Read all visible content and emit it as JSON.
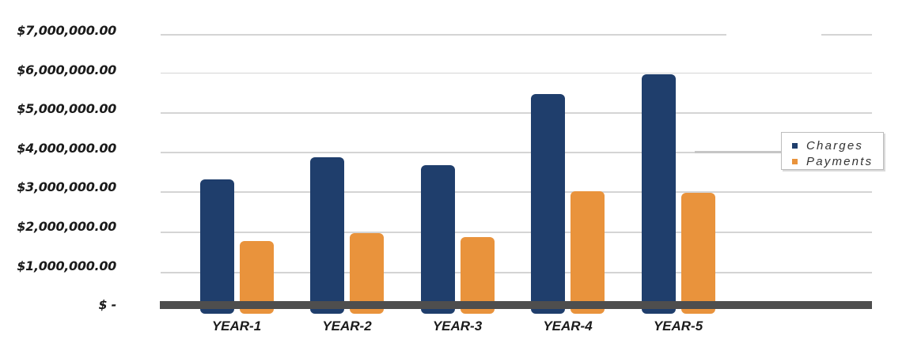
{
  "chart_data": {
    "type": "bar",
    "title": "",
    "categories": [
      "YEAR-1",
      "YEAR-2",
      "YEAR-3",
      "YEAR-4",
      "YEAR-5"
    ],
    "series": [
      {
        "name": "Charges",
        "color": "#1F3E6C",
        "values": [
          3350000,
          3900000,
          3700000,
          5500000,
          6000000
        ]
      },
      {
        "name": "Payments",
        "color": "#E9933C",
        "values": [
          1800000,
          2000000,
          1900000,
          3050000,
          3000000
        ]
      }
    ],
    "xlabel": "",
    "ylabel": "",
    "ylim": [
      0,
      7000000
    ],
    "y_tick_step": 1000000,
    "y_tick_labels": [
      "$7,000,000.00",
      "$6,000,000.00",
      "$5,000,000.00",
      "$4,000,000.00",
      "$3,000,000.00",
      "$2,000,000.00",
      "$1,000,000.00",
      "$ -"
    ],
    "grid": true,
    "legend": {
      "position": "right",
      "entries": [
        "Charges",
        "Payments"
      ]
    }
  },
  "colors": {
    "charges": "#1F3E6C",
    "payments": "#E9933C",
    "axis_bar": "#4E4E4E",
    "gridline": "#D4D4D4",
    "text": "#1A1A1A",
    "legend_border": "#BDBDBD"
  }
}
